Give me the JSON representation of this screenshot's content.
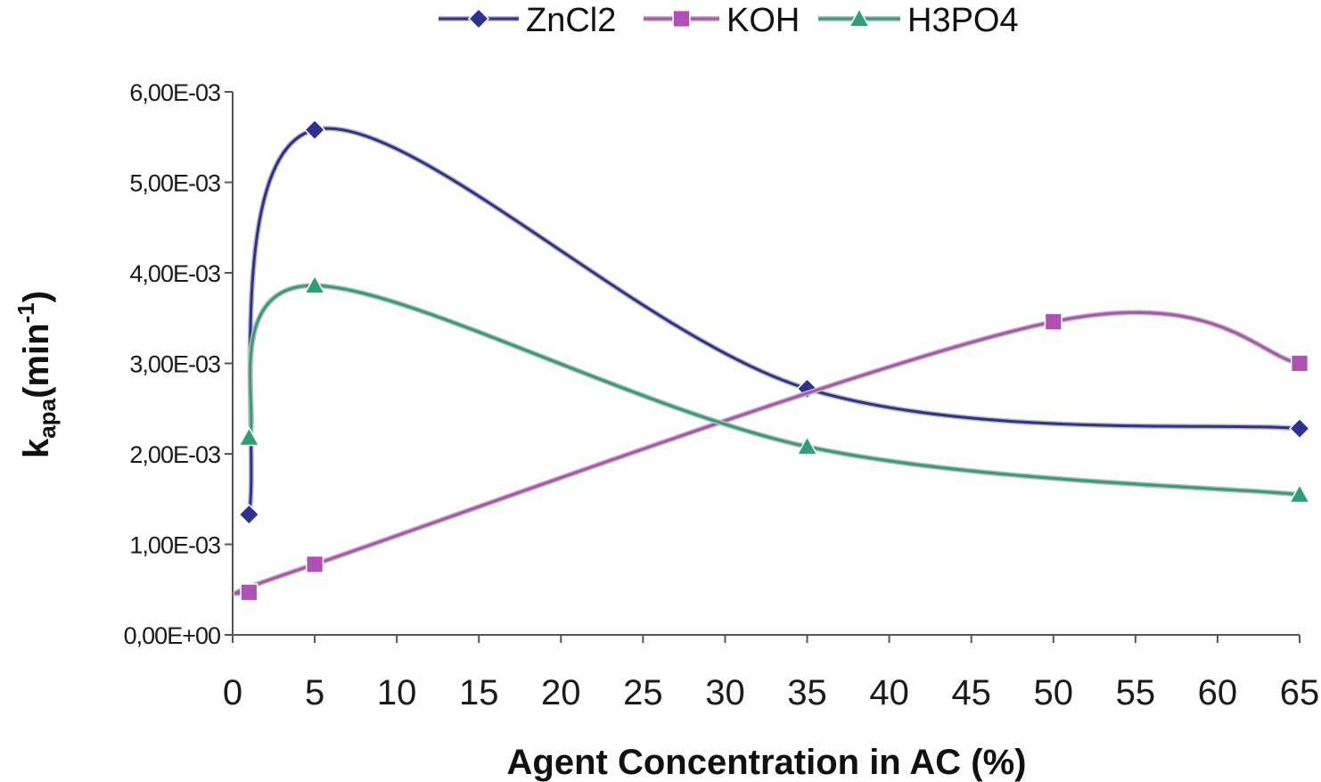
{
  "chart_data": {
    "type": "line",
    "title": "",
    "xlabel": "Agent Concentration in AC (%)",
    "ylabel": {
      "main": "k",
      "subscript": "apa",
      "unit": "(min",
      "superscript": "-1",
      "close": ")"
    },
    "xlim": [
      0,
      65
    ],
    "ylim": [
      0,
      0.006
    ],
    "x_ticks": [
      0,
      5,
      10,
      15,
      20,
      25,
      30,
      35,
      40,
      45,
      50,
      55,
      60,
      65
    ],
    "x_tick_labels": [
      "0",
      "5",
      "10",
      "15",
      "20",
      "25",
      "30",
      "35",
      "40",
      "45",
      "50",
      "55",
      "60",
      "65"
    ],
    "y_ticks": [
      0,
      0.001,
      0.002,
      0.003,
      0.004,
      0.005,
      0.006
    ],
    "y_tick_labels": [
      "0,00E+00",
      "1,00E-03",
      "2,00E-03",
      "3,00E-03",
      "4,00E-03",
      "5,00E-03",
      "6,00E-03"
    ],
    "grid": false,
    "legend_position": "top",
    "series": [
      {
        "name": "ZnCl2",
        "marker": "diamond",
        "color": "#2e3192",
        "x": [
          1,
          5,
          35,
          65
        ],
        "y": [
          0.00133,
          0.00558,
          0.00272,
          0.00228
        ]
      },
      {
        "name": "KOH",
        "marker": "square",
        "color": "#b04fb4",
        "x": [
          1,
          5,
          50,
          65
        ],
        "y": [
          0.00047,
          0.00078,
          0.00346,
          0.003
        ]
      },
      {
        "name": "H3PO4",
        "marker": "triangle",
        "color": "#2e9f77",
        "x": [
          1,
          5,
          35,
          65
        ],
        "y": [
          0.00218,
          0.00386,
          0.00208,
          0.00155
        ]
      }
    ]
  }
}
